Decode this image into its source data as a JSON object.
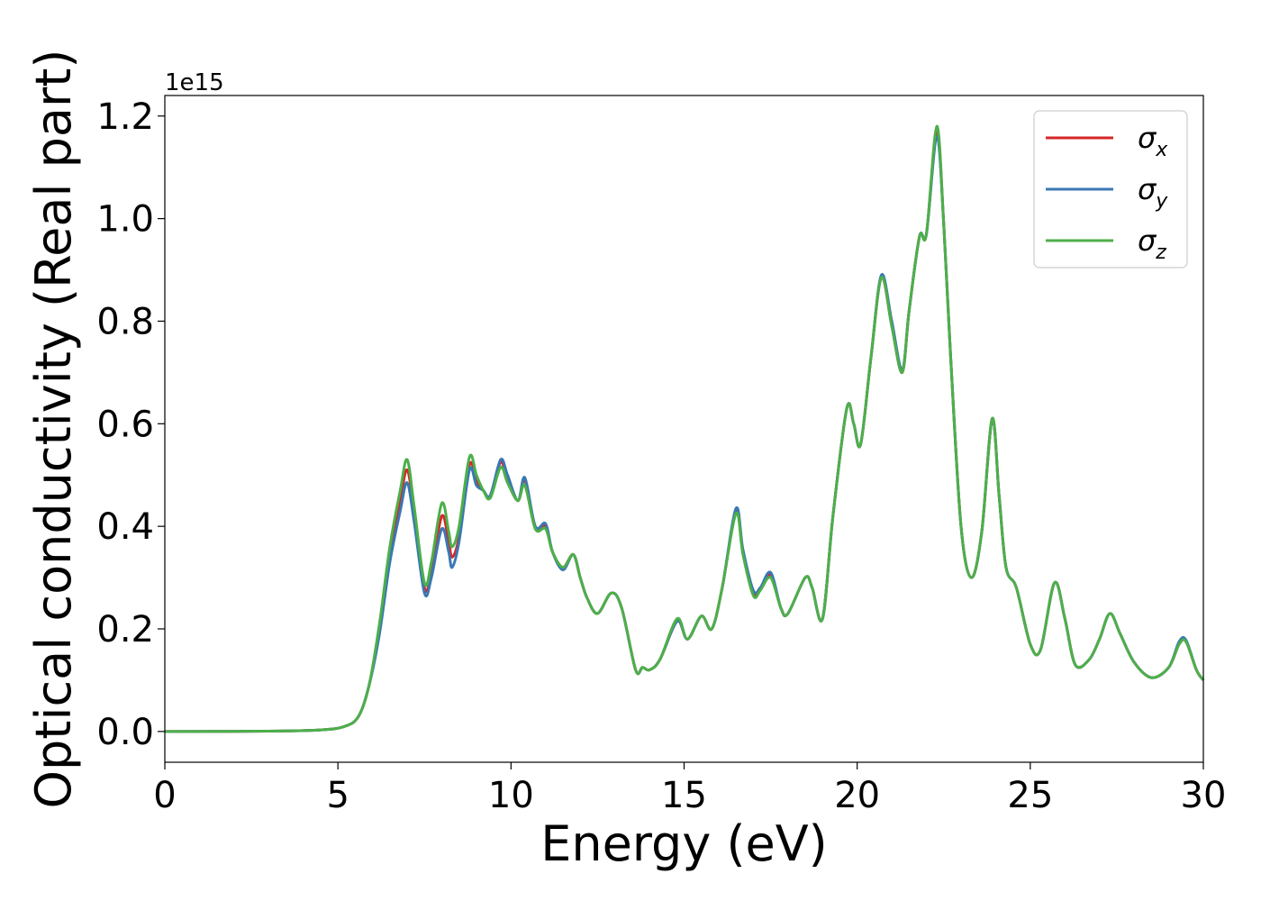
{
  "chart_data": {
    "type": "line",
    "xlabel": "Energy (eV)",
    "ylabel": "Optical conductivity (Real part)",
    "offset_label": "1e15",
    "xlim": [
      0,
      30
    ],
    "ylim": [
      -0.06,
      1.24
    ],
    "xticks": [
      0,
      5,
      10,
      15,
      20,
      25,
      30
    ],
    "yticks": [
      0.0,
      0.2,
      0.4,
      0.6,
      0.8,
      1.0,
      1.2
    ],
    "xtick_labels": [
      "0",
      "5",
      "10",
      "15",
      "20",
      "25",
      "30"
    ],
    "ytick_labels": [
      "0.0",
      "0.2",
      "0.4",
      "0.6",
      "0.8",
      "1.0",
      "1.2"
    ],
    "grid": false,
    "legend_position": "top-right",
    "series": [
      {
        "name": "σx",
        "symbol": "σ",
        "subscript": "x",
        "color": "#d62728",
        "x": [
          0,
          3,
          4.5,
          5.2,
          5.6,
          5.9,
          6.2,
          6.5,
          6.8,
          7.0,
          7.2,
          7.5,
          7.7,
          8.0,
          8.2,
          8.3,
          8.5,
          8.8,
          9.0,
          9.2,
          9.4,
          9.7,
          9.9,
          10.2,
          10.4,
          10.7,
          11.0,
          11.2,
          11.5,
          11.8,
          12.0,
          12.2,
          12.5,
          12.9,
          13.2,
          13.6,
          13.8,
          14.0,
          14.3,
          14.8,
          15.1,
          15.5,
          15.8,
          16.1,
          16.5,
          16.7,
          17.0,
          17.2,
          17.5,
          17.8,
          18.0,
          18.5,
          18.7,
          19.0,
          19.3,
          19.7,
          19.9,
          20.1,
          20.4,
          20.7,
          21.0,
          21.3,
          21.5,
          21.8,
          22.0,
          22.3,
          22.5,
          22.7,
          23.0,
          23.3,
          23.6,
          23.9,
          24.1,
          24.3,
          24.6,
          25.0,
          25.3,
          25.7,
          26.0,
          26.3,
          26.7,
          27.0,
          27.3,
          27.6,
          28.0,
          28.5,
          29.0,
          29.3,
          29.5,
          29.8,
          30.0
        ],
        "y": [
          0.0,
          0.0005,
          0.003,
          0.01,
          0.03,
          0.09,
          0.2,
          0.34,
          0.45,
          0.51,
          0.43,
          0.28,
          0.31,
          0.42,
          0.37,
          0.34,
          0.38,
          0.52,
          0.49,
          0.47,
          0.46,
          0.525,
          0.49,
          0.45,
          0.49,
          0.4,
          0.4,
          0.35,
          0.32,
          0.345,
          0.3,
          0.26,
          0.23,
          0.27,
          0.24,
          0.12,
          0.125,
          0.12,
          0.14,
          0.215,
          0.18,
          0.225,
          0.2,
          0.28,
          0.43,
          0.35,
          0.27,
          0.28,
          0.305,
          0.24,
          0.23,
          0.3,
          0.28,
          0.22,
          0.42,
          0.63,
          0.6,
          0.56,
          0.73,
          0.885,
          0.79,
          0.7,
          0.82,
          0.965,
          0.97,
          1.17,
          0.99,
          0.73,
          0.4,
          0.3,
          0.39,
          0.61,
          0.46,
          0.32,
          0.28,
          0.17,
          0.16,
          0.29,
          0.22,
          0.13,
          0.14,
          0.18,
          0.23,
          0.19,
          0.135,
          0.105,
          0.125,
          0.17,
          0.175,
          0.12,
          0.1
        ]
      },
      {
        "name": "σy",
        "symbol": "σ",
        "subscript": "y",
        "color": "#3a78b3",
        "x": [
          0,
          3,
          4.5,
          5.2,
          5.6,
          5.9,
          6.2,
          6.5,
          6.8,
          7.0,
          7.2,
          7.5,
          7.7,
          8.0,
          8.2,
          8.3,
          8.5,
          8.8,
          9.0,
          9.2,
          9.4,
          9.7,
          9.9,
          10.2,
          10.4,
          10.7,
          11.0,
          11.2,
          11.5,
          11.8,
          12.0,
          12.2,
          12.5,
          12.9,
          13.2,
          13.6,
          13.8,
          14.0,
          14.3,
          14.8,
          15.1,
          15.5,
          15.8,
          16.1,
          16.5,
          16.7,
          17.0,
          17.2,
          17.5,
          17.8,
          18.0,
          18.5,
          18.7,
          19.0,
          19.3,
          19.7,
          19.9,
          20.1,
          20.4,
          20.7,
          21.0,
          21.3,
          21.5,
          21.8,
          22.0,
          22.3,
          22.5,
          22.7,
          23.0,
          23.3,
          23.6,
          23.9,
          24.1,
          24.3,
          24.6,
          25.0,
          25.3,
          25.7,
          26.0,
          26.3,
          26.7,
          27.0,
          27.3,
          27.6,
          28.0,
          28.5,
          29.0,
          29.3,
          29.5,
          29.8,
          30.0
        ],
        "y": [
          0.0,
          0.0005,
          0.003,
          0.01,
          0.03,
          0.09,
          0.19,
          0.33,
          0.43,
          0.485,
          0.41,
          0.27,
          0.3,
          0.395,
          0.35,
          0.32,
          0.37,
          0.51,
          0.48,
          0.47,
          0.46,
          0.53,
          0.5,
          0.45,
          0.495,
          0.4,
          0.405,
          0.35,
          0.315,
          0.345,
          0.3,
          0.26,
          0.23,
          0.27,
          0.24,
          0.12,
          0.125,
          0.12,
          0.14,
          0.215,
          0.18,
          0.225,
          0.2,
          0.28,
          0.435,
          0.355,
          0.275,
          0.28,
          0.31,
          0.24,
          0.23,
          0.3,
          0.28,
          0.22,
          0.42,
          0.63,
          0.6,
          0.56,
          0.73,
          0.89,
          0.8,
          0.705,
          0.82,
          0.965,
          0.97,
          1.16,
          0.99,
          0.73,
          0.4,
          0.3,
          0.39,
          0.61,
          0.46,
          0.32,
          0.28,
          0.17,
          0.16,
          0.29,
          0.22,
          0.13,
          0.14,
          0.18,
          0.23,
          0.19,
          0.135,
          0.105,
          0.125,
          0.175,
          0.178,
          0.12,
          0.1
        ]
      },
      {
        "name": "σz",
        "symbol": "σ",
        "subscript": "z",
        "color": "#4daf4a",
        "x": [
          0,
          3,
          4.5,
          5.2,
          5.6,
          5.9,
          6.2,
          6.5,
          6.8,
          7.0,
          7.2,
          7.5,
          7.7,
          8.0,
          8.2,
          8.3,
          8.5,
          8.8,
          9.0,
          9.2,
          9.4,
          9.7,
          9.9,
          10.2,
          10.4,
          10.7,
          11.0,
          11.2,
          11.5,
          11.8,
          12.0,
          12.2,
          12.5,
          12.9,
          13.2,
          13.6,
          13.8,
          14.0,
          14.3,
          14.8,
          15.1,
          15.5,
          15.8,
          16.1,
          16.5,
          16.7,
          17.0,
          17.2,
          17.5,
          17.8,
          18.0,
          18.5,
          18.7,
          19.0,
          19.3,
          19.7,
          19.9,
          20.1,
          20.4,
          20.7,
          21.0,
          21.3,
          21.5,
          21.8,
          22.0,
          22.3,
          22.5,
          22.7,
          23.0,
          23.3,
          23.6,
          23.9,
          24.1,
          24.3,
          24.6,
          25.0,
          25.3,
          25.7,
          26.0,
          26.3,
          26.7,
          27.0,
          27.3,
          27.6,
          28.0,
          28.5,
          29.0,
          29.3,
          29.5,
          29.8,
          30.0
        ],
        "y": [
          0.0,
          0.0005,
          0.003,
          0.01,
          0.03,
          0.09,
          0.21,
          0.36,
          0.47,
          0.53,
          0.44,
          0.29,
          0.33,
          0.445,
          0.39,
          0.36,
          0.4,
          0.535,
          0.5,
          0.47,
          0.455,
          0.515,
          0.485,
          0.45,
          0.48,
          0.395,
          0.395,
          0.35,
          0.32,
          0.345,
          0.3,
          0.26,
          0.23,
          0.27,
          0.24,
          0.12,
          0.125,
          0.12,
          0.14,
          0.22,
          0.18,
          0.225,
          0.2,
          0.28,
          0.425,
          0.345,
          0.265,
          0.275,
          0.3,
          0.24,
          0.23,
          0.3,
          0.28,
          0.22,
          0.42,
          0.63,
          0.6,
          0.56,
          0.73,
          0.885,
          0.79,
          0.7,
          0.82,
          0.965,
          0.97,
          1.18,
          0.99,
          0.73,
          0.4,
          0.3,
          0.39,
          0.61,
          0.46,
          0.32,
          0.28,
          0.17,
          0.16,
          0.29,
          0.22,
          0.13,
          0.14,
          0.18,
          0.23,
          0.19,
          0.135,
          0.105,
          0.125,
          0.17,
          0.175,
          0.12,
          0.1
        ]
      }
    ]
  }
}
